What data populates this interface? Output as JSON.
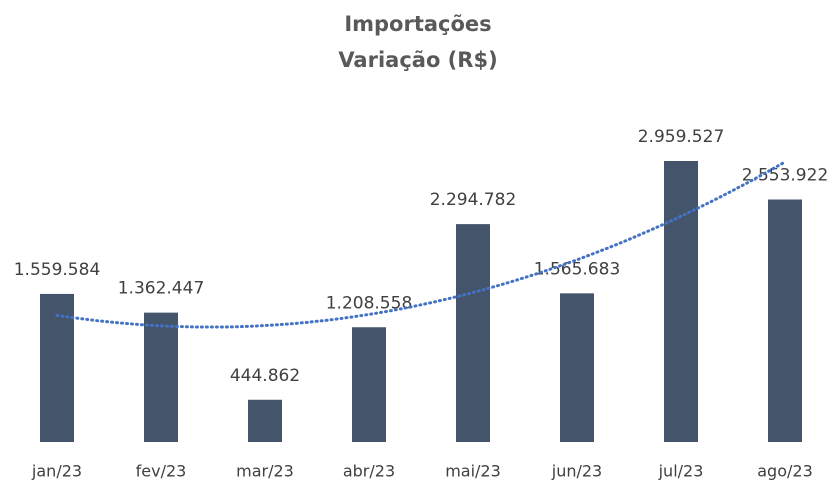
{
  "chart_data": {
    "type": "bar",
    "title": [
      "Importações",
      "Variação (R$)"
    ],
    "categories": [
      "jan/23",
      "fev/23",
      "mar/23",
      "abr/23",
      "mai/23",
      "jun/23",
      "jul/23",
      "ago/23"
    ],
    "values": [
      1559584,
      1362447,
      444862,
      1208558,
      2294782,
      1565683,
      2959527,
      2553922
    ],
    "value_labels": [
      "1.559.584",
      "1.362.447",
      "444.862",
      "1.208.558",
      "2.294.782",
      "1.565.683",
      "2.959.527",
      "2.553.922"
    ],
    "color": "#44546a",
    "trendline": {
      "type": "polynomial",
      "order": 2,
      "color": "#4472c4"
    }
  }
}
